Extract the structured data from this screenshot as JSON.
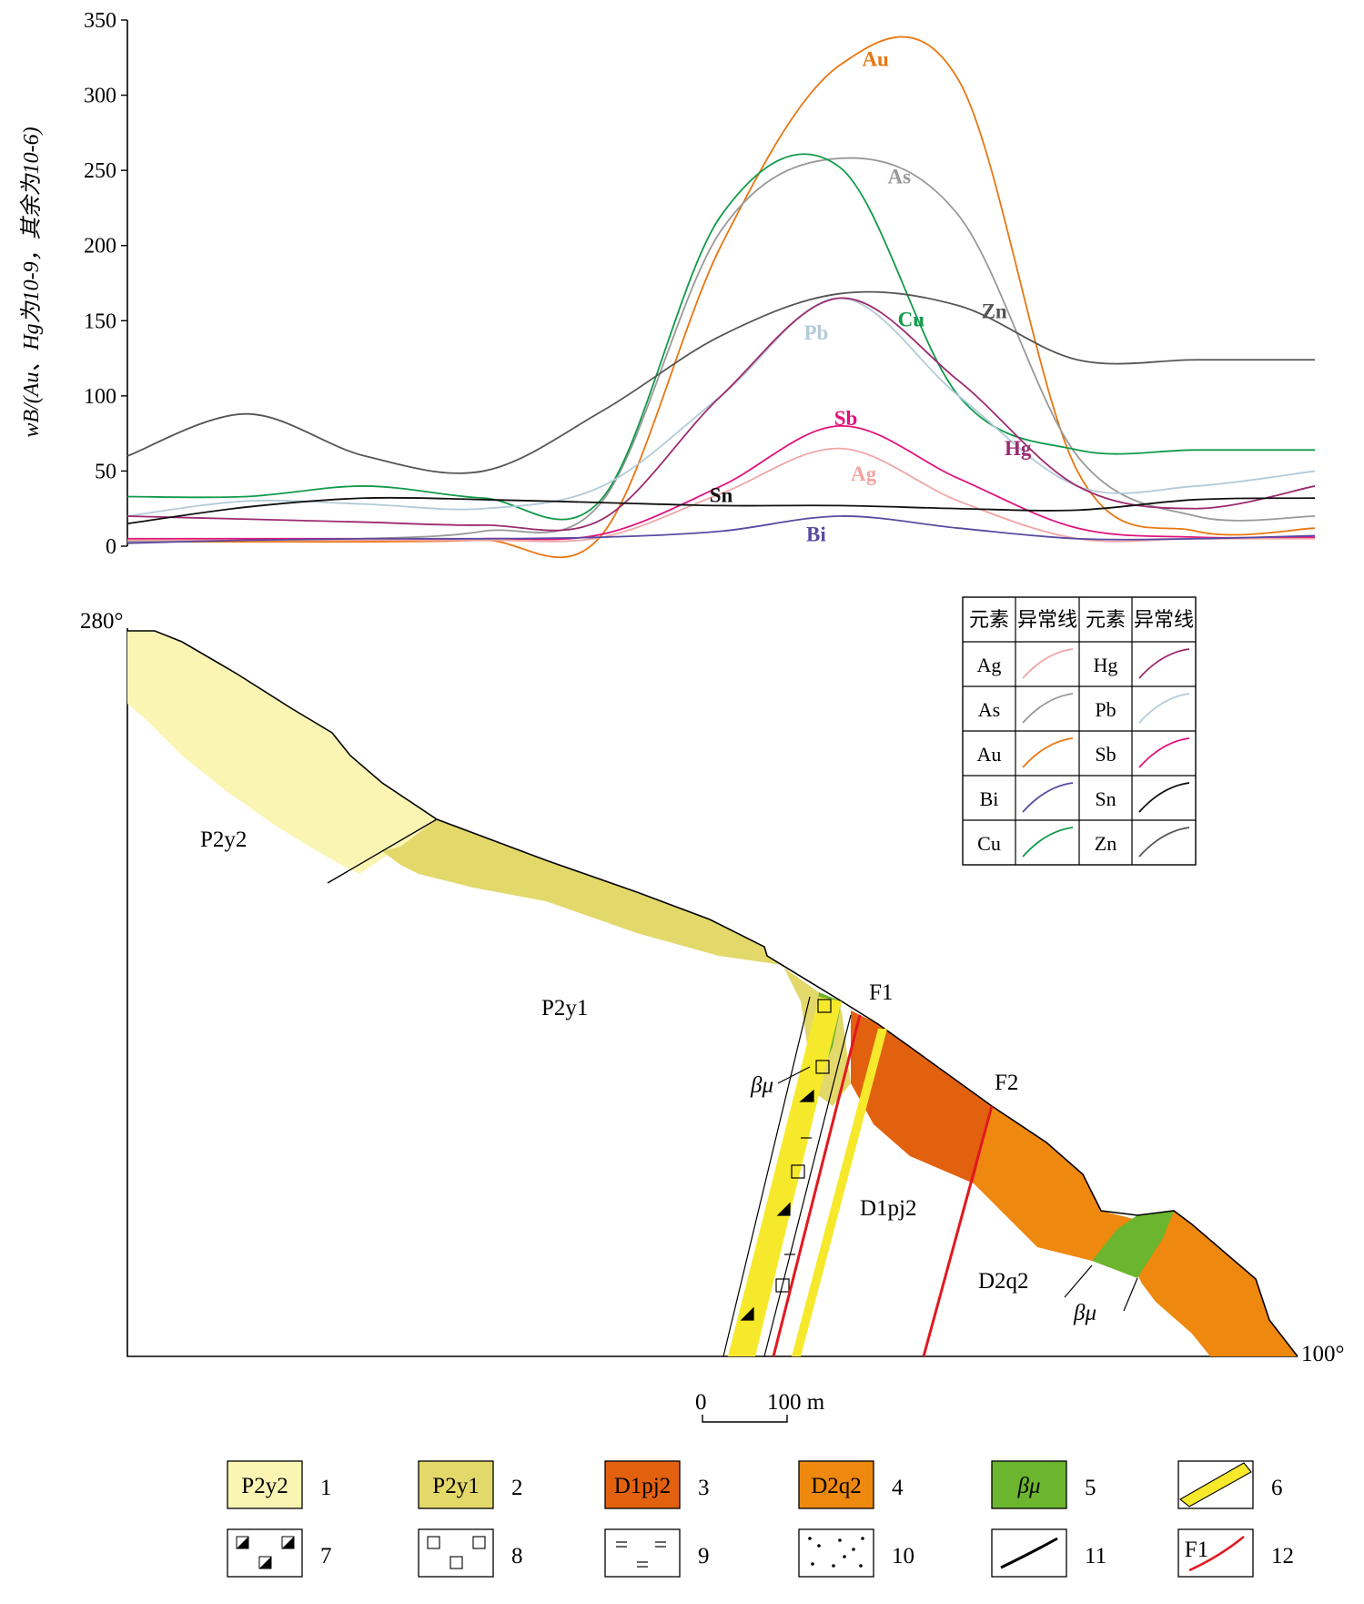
{
  "chart_data": {
    "type": "line",
    "ylabel": "wB/(Au、Hg为10-9，其余为10-6)",
    "ylim": [
      0,
      350
    ],
    "yticks": [
      "0",
      "50",
      "100",
      "150",
      "200",
      "250",
      "300",
      "350"
    ],
    "series": [
      {
        "name": "Au",
        "color": "#e87712",
        "values": [
          3,
          3,
          3,
          4,
          8,
          200,
          320,
          310,
          50,
          10,
          12
        ]
      },
      {
        "name": "As",
        "color": "#999999",
        "values": [
          3,
          4,
          5,
          10,
          30,
          210,
          258,
          220,
          60,
          20,
          20
        ]
      },
      {
        "name": "Cu",
        "color": "#129a4a",
        "values": [
          33,
          33,
          40,
          32,
          32,
          220,
          252,
          100,
          64,
          64,
          64
        ]
      },
      {
        "name": "Zn",
        "color": "#555555",
        "values": [
          60,
          88,
          60,
          50,
          90,
          140,
          168,
          160,
          124,
          124,
          124
        ]
      },
      {
        "name": "Pb",
        "color": "#b3cbd8",
        "values": [
          20,
          30,
          28,
          25,
          40,
          100,
          165,
          100,
          40,
          40,
          50
        ]
      },
      {
        "name": "Hg",
        "color": "#9c2b6f",
        "values": [
          20,
          18,
          16,
          14,
          18,
          100,
          165,
          110,
          40,
          25,
          40
        ]
      },
      {
        "name": "Sb",
        "color": "#e0127c",
        "values": [
          5,
          5,
          5,
          5,
          8,
          40,
          80,
          45,
          12,
          6,
          6
        ]
      },
      {
        "name": "Ag",
        "color": "#f0a5a5",
        "values": [
          4,
          4,
          4,
          4,
          6,
          35,
          65,
          30,
          5,
          5,
          5
        ]
      },
      {
        "name": "Sn",
        "color": "#111111",
        "values": [
          15,
          26,
          32,
          31,
          29,
          27,
          27,
          25,
          24,
          31,
          32
        ]
      },
      {
        "name": "Bi",
        "color": "#5a4aa0",
        "values": [
          2,
          4,
          5,
          5,
          6,
          10,
          20,
          12,
          5,
          5,
          7
        ]
      }
    ]
  },
  "section": {
    "elev_left": "280°",
    "elev_right": "100°",
    "unit_P2y2": "P2y2",
    "unit_P2y1": "P2y1",
    "unit_D1pj2": "D1pj2",
    "unit_D2q2": "D2q2",
    "dike_label_1": "βμ",
    "dike_label_2": "βμ",
    "fault_F1": "F1",
    "fault_F2": "F2",
    "colors": {
      "P2y2": "#fbf5b4",
      "P2y1": "#e3d86a",
      "D1pj2": "#e2610f",
      "D2q2": "#ee880e",
      "dike": "#6cb52e",
      "vein": "#f6e92b",
      "fault": "#e2181e"
    }
  },
  "scale": {
    "zero": "0",
    "dist": "100 m"
  },
  "anomaly_legend": {
    "header": [
      "元素",
      "异常线",
      "元素",
      "异常线"
    ],
    "rows": [
      [
        "Ag",
        "Hg"
      ],
      [
        "As",
        "Pb"
      ],
      [
        "Au",
        "Sb"
      ],
      [
        "Bi",
        "Sn"
      ],
      [
        "Cu",
        "Zn"
      ]
    ]
  },
  "legend": {
    "items": [
      {
        "num": "1",
        "text": "P2y2"
      },
      {
        "num": "2",
        "text": "P2y1"
      },
      {
        "num": "3",
        "text": "D1pj2"
      },
      {
        "num": "4",
        "text": "D2q2"
      },
      {
        "num": "5",
        "text": "βμ"
      },
      {
        "num": "6",
        "text": ""
      },
      {
        "num": "7",
        "text": ""
      },
      {
        "num": "8",
        "text": ""
      },
      {
        "num": "9",
        "text": ""
      },
      {
        "num": "10",
        "text": ""
      },
      {
        "num": "11",
        "text": ""
      },
      {
        "num": "12",
        "text": "F1"
      }
    ]
  }
}
